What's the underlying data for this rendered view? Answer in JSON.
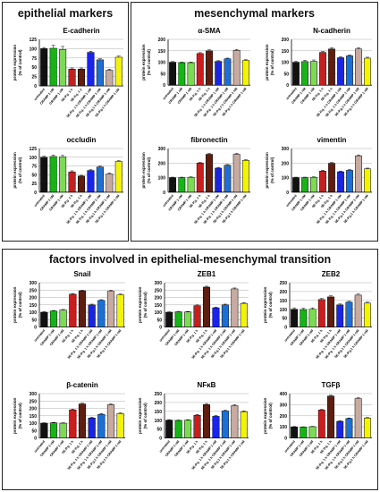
{
  "panels": {
    "epithelial": "epithelial markers",
    "mesenchymal": "mesenchymal markers",
    "emt": "factors involved in epithelial-mesenchymal transition"
  },
  "x_categories": [
    "untreated",
    "CRAMP 1 nM",
    "CRAMP 1 nM",
    "5E-P.g. 1 h",
    "5E-P.g. 1 h",
    "5E-P.g. 1 h CRAMP 1 nM",
    "5E-P.g. 1 h CRAMP 1 nM",
    "5E-P.g.1 h CRAMP 1 nM",
    "5E-P.g.1 h CRAMP 1 nM"
  ],
  "bar_colors": [
    "#111111",
    "#19b219",
    "#7ed957",
    "#c81e1e",
    "#5e1d0f",
    "#1a24e6",
    "#1f6fd1",
    "#c8aaa0",
    "#f2f20a"
  ],
  "ylabel": "protein expression\n(% of control)",
  "chart_data": [
    {
      "type": "bar",
      "title": "E-cadherin",
      "ylim": [
        0,
        125
      ],
      "ticks": [
        0,
        25,
        50,
        75,
        100,
        125
      ],
      "values": [
        100,
        101,
        98,
        45,
        45,
        90,
        70,
        42,
        77
      ],
      "errors": [
        3,
        8,
        8,
        3,
        3,
        3,
        3,
        3,
        3
      ]
    },
    {
      "type": "bar",
      "title": "occludin",
      "ylim": [
        0,
        125
      ],
      "ticks": [
        0,
        25,
        50,
        75,
        100,
        125
      ],
      "values": [
        100,
        102,
        101,
        58,
        46,
        62,
        72,
        52,
        88
      ],
      "errors": [
        3,
        4,
        4,
        3,
        2,
        2,
        3,
        3,
        2
      ]
    },
    {
      "type": "bar",
      "title": "α-SMA",
      "ylim": [
        0,
        200
      ],
      "ticks": [
        0,
        50,
        100,
        150,
        200
      ],
      "values": [
        100,
        98,
        98,
        138,
        150,
        104,
        115,
        152,
        108
      ],
      "errors": [
        3,
        3,
        3,
        4,
        4,
        3,
        3,
        4,
        3
      ]
    },
    {
      "type": "bar",
      "title": "N-cadherin",
      "ylim": [
        0,
        200
      ],
      "ticks": [
        0,
        50,
        100,
        150,
        200
      ],
      "values": [
        100,
        103,
        104,
        143,
        158,
        120,
        128,
        158,
        118
      ],
      "errors": [
        4,
        6,
        6,
        4,
        5,
        4,
        4,
        5,
        4
      ]
    },
    {
      "type": "bar",
      "title": "fibronectin",
      "ylim": [
        0,
        300
      ],
      "ticks": [
        0,
        100,
        200,
        300
      ],
      "values": [
        100,
        100,
        102,
        200,
        260,
        165,
        185,
        260,
        218
      ],
      "errors": [
        3,
        3,
        3,
        5,
        6,
        5,
        5,
        6,
        5
      ]
    },
    {
      "type": "bar",
      "title": "vimentin",
      "ylim": [
        0,
        300
      ],
      "ticks": [
        0,
        100,
        200,
        300
      ],
      "values": [
        100,
        100,
        102,
        145,
        198,
        140,
        150,
        250,
        160
      ],
      "errors": [
        3,
        3,
        3,
        5,
        6,
        5,
        5,
        6,
        5
      ]
    },
    {
      "type": "bar",
      "title": "Snail",
      "ylim": [
        0,
        300
      ],
      "ticks": [
        0,
        50,
        100,
        150,
        200,
        250,
        300
      ],
      "values": [
        100,
        108,
        115,
        222,
        245,
        150,
        180,
        242,
        218
      ],
      "errors": [
        4,
        4,
        4,
        5,
        5,
        5,
        5,
        6,
        5
      ]
    },
    {
      "type": "bar",
      "title": "ZEB1",
      "ylim": [
        0,
        300
      ],
      "ticks": [
        0,
        50,
        100,
        150,
        200,
        250,
        300
      ],
      "values": [
        100,
        103,
        102,
        145,
        270,
        130,
        150,
        258,
        160
      ],
      "errors": [
        3,
        3,
        3,
        5,
        6,
        5,
        5,
        6,
        5
      ]
    },
    {
      "type": "bar",
      "title": "ZEB2",
      "ylim": [
        0,
        250
      ],
      "ticks": [
        0,
        50,
        100,
        150,
        200,
        250
      ],
      "values": [
        100,
        98,
        100,
        155,
        170,
        125,
        140,
        180,
        135
      ],
      "errors": [
        8,
        8,
        8,
        6,
        6,
        5,
        5,
        6,
        5
      ]
    },
    {
      "type": "bar",
      "title": "β-catenin",
      "ylim": [
        0,
        300
      ],
      "ticks": [
        0,
        50,
        100,
        150,
        200,
        250,
        300
      ],
      "values": [
        100,
        102,
        100,
        190,
        230,
        135,
        160,
        225,
        165
      ],
      "errors": [
        3,
        3,
        3,
        5,
        6,
        5,
        5,
        6,
        5
      ]
    },
    {
      "type": "bar",
      "title": "NFκB",
      "ylim": [
        0,
        250
      ],
      "ticks": [
        0,
        50,
        100,
        150,
        200,
        250
      ],
      "values": [
        100,
        98,
        100,
        128,
        188,
        122,
        152,
        182,
        148
      ],
      "errors": [
        3,
        3,
        3,
        5,
        6,
        5,
        5,
        6,
        5
      ]
    },
    {
      "type": "bar",
      "title": "TGFβ",
      "ylim": [
        0,
        400
      ],
      "ticks": [
        0,
        100,
        200,
        300,
        400
      ],
      "values": [
        100,
        98,
        102,
        252,
        378,
        150,
        175,
        355,
        180
      ],
      "errors": [
        3,
        3,
        3,
        6,
        7,
        5,
        5,
        7,
        5
      ]
    }
  ]
}
